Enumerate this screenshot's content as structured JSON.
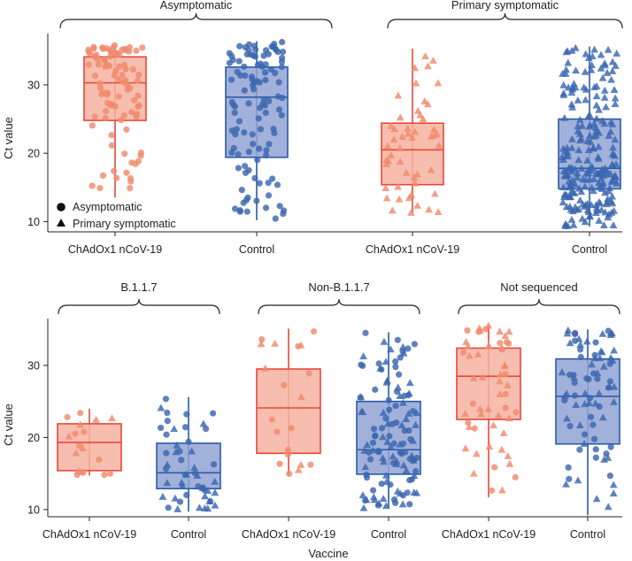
{
  "colors": {
    "vaccine_stroke": "#e8473a",
    "vaccine_fill": "#f6b3a1",
    "vaccine_point": "#f08a6e",
    "control_stroke": "#2a5ba8",
    "control_fill": "#90a3d3",
    "control_point": "#3a66b0",
    "axis": "#222222"
  },
  "legend": {
    "asymptomatic_label": "Asymptomatic",
    "primary_label": "Primary symptomatic"
  },
  "chart_data": [
    {
      "type": "box",
      "panel": "top",
      "ylabel": "Ct value",
      "ylim": [
        8.5,
        37.5
      ],
      "yticks": [
        10,
        20,
        30
      ],
      "groups": [
        {
          "label": "Asymptomatic",
          "boxes": [
            {
              "category": "ChAdOx1 nCoV-19",
              "arm": "vaccine",
              "marker": "circle",
              "min": 13.5,
              "q1": 24.8,
              "median": 30.3,
              "q3": 34.1,
              "max": 35.8,
              "n_points": 95
            },
            {
              "category": "Control",
              "arm": "control",
              "marker": "circle",
              "min": 10.2,
              "q1": 19.4,
              "median": 28.2,
              "q3": 32.6,
              "max": 36.4,
              "n_points": 110
            }
          ]
        },
        {
          "label": "Primary symptomatic",
          "boxes": [
            {
              "category": "ChAdOx1 nCoV-19",
              "arm": "vaccine",
              "marker": "triangle",
              "min": 11.3,
              "q1": 15.4,
              "median": 20.5,
              "q3": 24.4,
              "max": 35.3,
              "n_points": 50
            },
            {
              "category": "Control",
              "arm": "control",
              "marker": "triangle",
              "min": 9.3,
              "q1": 14.8,
              "median": 17.8,
              "q3": 25.0,
              "max": 35.6,
              "n_points": 230
            }
          ]
        }
      ]
    },
    {
      "type": "box",
      "panel": "bottom",
      "ylabel": "Ct value",
      "xlabel": "Vaccine",
      "ylim": [
        9.0,
        36.5
      ],
      "yticks": [
        10,
        20,
        30
      ],
      "groups": [
        {
          "label": "B.1.1.7",
          "boxes": [
            {
              "category": "ChAdOx1 nCoV-19",
              "arm": "vaccine",
              "marker": "mixed",
              "min": 14.7,
              "q1": 15.4,
              "median": 19.3,
              "q3": 21.9,
              "max": 24.0,
              "n_points": 18
            },
            {
              "category": "Control",
              "arm": "control",
              "marker": "mixed",
              "min": 9.7,
              "q1": 12.9,
              "median": 15.1,
              "q3": 19.2,
              "max": 25.6,
              "n_points": 50
            }
          ]
        },
        {
          "label": "Non-B.1.1.7",
          "boxes": [
            {
              "category": "ChAdOx1 nCoV-19",
              "arm": "vaccine",
              "marker": "mixed",
              "min": 14.7,
              "q1": 17.8,
              "median": 24.1,
              "q3": 29.5,
              "max": 35.1,
              "n_points": 20
            },
            {
              "category": "Control",
              "arm": "control",
              "marker": "mixed",
              "min": 10.2,
              "q1": 14.9,
              "median": 18.3,
              "q3": 25.0,
              "max": 34.6,
              "n_points": 120
            }
          ]
        },
        {
          "label": "Not sequenced",
          "boxes": [
            {
              "category": "ChAdOx1 nCoV-19",
              "arm": "vaccine",
              "marker": "mixed",
              "min": 11.7,
              "q1": 22.5,
              "median": 28.5,
              "q3": 32.4,
              "max": 35.6,
              "n_points": 55
            },
            {
              "category": "Control",
              "arm": "control",
              "marker": "mixed",
              "min": 9.2,
              "q1": 19.1,
              "median": 25.7,
              "q3": 30.9,
              "max": 35.0,
              "n_points": 80
            }
          ]
        }
      ]
    }
  ]
}
